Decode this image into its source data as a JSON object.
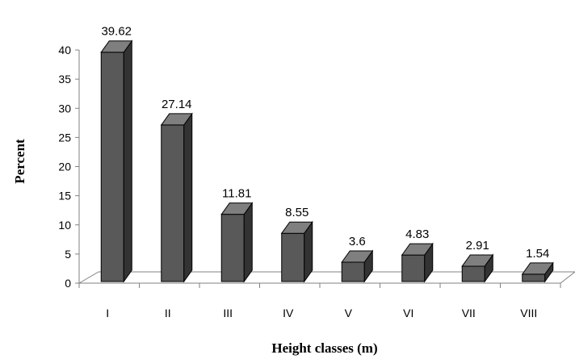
{
  "chart_data": {
    "type": "bar",
    "categories": [
      "I",
      "II",
      "III",
      "IV",
      "V",
      "VI",
      "VII",
      "VIII"
    ],
    "values": [
      39.62,
      27.14,
      11.81,
      8.55,
      3.6,
      4.83,
      2.91,
      1.54
    ],
    "value_labels": [
      "39.62",
      "27.14",
      "11.81",
      "8.55",
      "3.6",
      "4.83",
      "2.91",
      "1.54"
    ],
    "title": "",
    "xlabel": "Height classes (m)",
    "ylabel": "Percent",
    "ylim": [
      0,
      40
    ],
    "yticks": [
      "0",
      "5",
      "10",
      "15",
      "20",
      "25",
      "30",
      "35",
      "40"
    ],
    "style": "3d-column",
    "grid": false,
    "legend": "none",
    "colors": {
      "bar_front": "#595959",
      "bar_side": "#333333",
      "bar_top": "#7f7f7f",
      "outline": "#000000",
      "floor": "#ffffff",
      "axis": "#808080"
    }
  }
}
